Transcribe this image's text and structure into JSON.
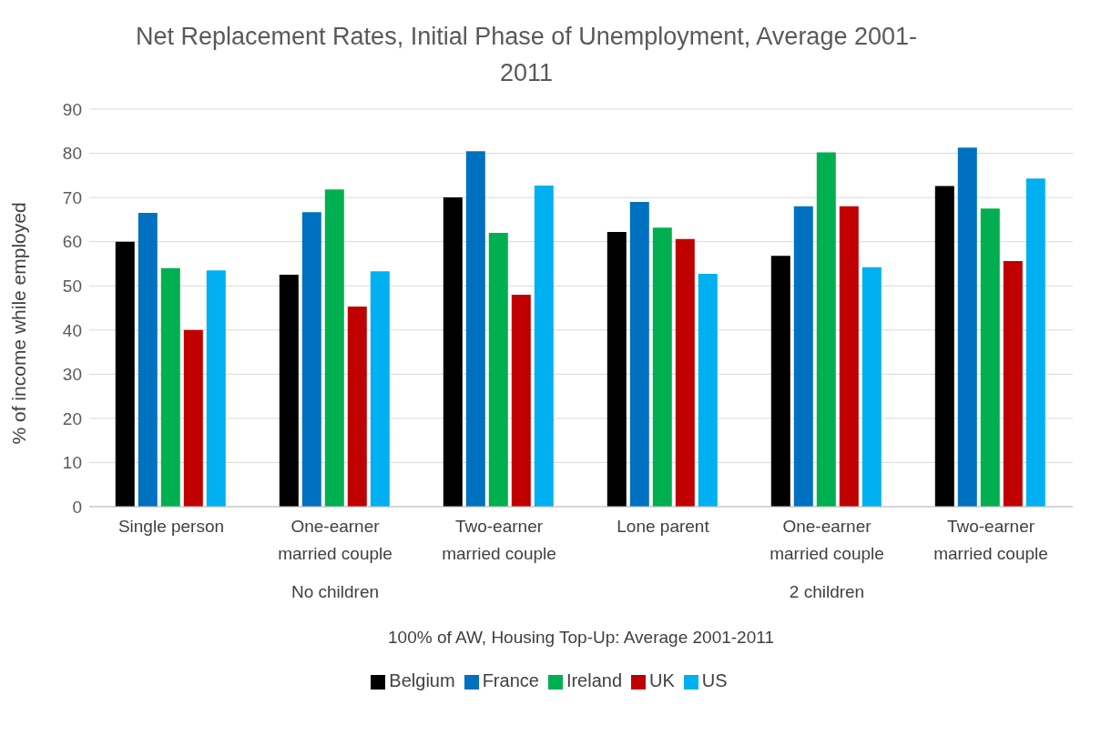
{
  "chart_data": {
    "type": "bar",
    "title": "Net Replacement Rates, Initial Phase of Unemployment, Average 2001-2011",
    "ylabel": "% of income while employed",
    "xlabel": "100% of AW, Housing Top-Up: Average 2001-2011",
    "annotations": [
      "No children",
      "2 children"
    ],
    "categories": [
      "Single person",
      "One-earner married couple",
      "Two-earner married couple",
      "Lone parent",
      "One-earner married couple",
      "Two-earner married couple"
    ],
    "series": [
      {
        "name": "Belgium",
        "color": "#000000",
        "values": [
          60,
          52.5,
          70,
          62.2,
          56.8,
          72.6
        ]
      },
      {
        "name": "France",
        "color": "#0070c0",
        "values": [
          66.5,
          66.7,
          80.5,
          69,
          68,
          81.3
        ]
      },
      {
        "name": "Ireland",
        "color": "#00b050",
        "values": [
          54,
          71.8,
          62,
          63.2,
          80.2,
          67.5
        ]
      },
      {
        "name": "UK",
        "color": "#c00000",
        "values": [
          40,
          45.3,
          48,
          60.6,
          68,
          55.6
        ]
      },
      {
        "name": "US",
        "color": "#00b0f0",
        "values": [
          53.5,
          53.3,
          72.7,
          52.7,
          54.2,
          74.3
        ]
      }
    ],
    "ylim": [
      0,
      90
    ],
    "yticks": [
      0,
      10,
      20,
      30,
      40,
      50,
      60,
      70,
      80,
      90
    ],
    "grid": "y",
    "legend": "bottom"
  }
}
